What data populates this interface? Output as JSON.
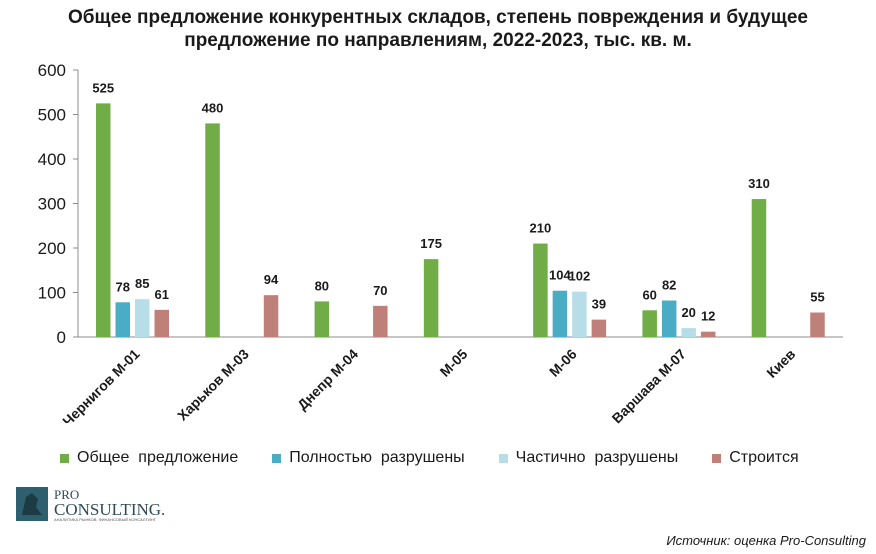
{
  "chart_data": {
    "type": "bar",
    "title_lines": [
      "Общее предложение конкурентных складов, степень повреждения и будущее",
      "предложение по направлениям, 2022-2023, тыс. кв. м."
    ],
    "categories": [
      "Чернигов М-01",
      "Харьков М-03",
      "Днепр М-04",
      "М-05",
      "М-06",
      "Варшава М-07",
      "Киев"
    ],
    "series": [
      {
        "name": "Общее  предложение",
        "color": "#70ad47",
        "values": [
          525,
          480,
          80,
          175,
          210,
          60,
          310
        ]
      },
      {
        "name": "Полностью  разрушены",
        "color": "#4bacc6",
        "values": [
          78,
          null,
          null,
          null,
          104,
          82,
          null
        ]
      },
      {
        "name": "Частично  разрушены",
        "color": "#b7dee8",
        "values": [
          85,
          null,
          null,
          null,
          102,
          20,
          null
        ]
      },
      {
        "name": "Строится",
        "color": "#c0807a",
        "values": [
          61,
          94,
          70,
          null,
          39,
          12,
          55
        ]
      }
    ],
    "ylim": [
      0,
      600
    ],
    "yticks": [
      0,
      100,
      200,
      300,
      400,
      500,
      600
    ],
    "grid": false,
    "legend_position": "bottom"
  },
  "logo": {
    "line1": "PRO",
    "line2": "CONSULTING.",
    "tagline": "АНАЛИТИКА РЫНКОВ. ФИНАНСОВЫЙ КОНСАЛТИНГ"
  },
  "source": "Источник: оценка Pro-Consulting"
}
